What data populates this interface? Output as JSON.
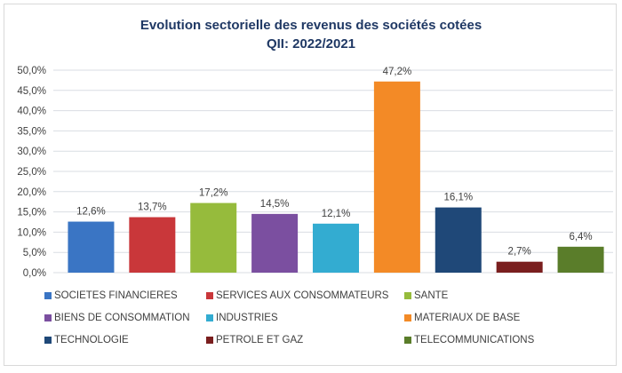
{
  "chart_data": {
    "type": "bar",
    "title": "Evolution sectorielle des revenus des sociétés cotées",
    "subtitle": "QII: 2022/2021",
    "categories": [
      "SOCIETES FINANCIERES",
      "SERVICES AUX CONSOMMATEURS",
      "SANTE",
      "BIENS DE CONSOMMATION",
      "INDUSTRIES",
      "MATERIAUX DE BASE",
      "TECHNOLOGIE",
      "PETROLE ET GAZ",
      "TELECOMMUNICATIONS"
    ],
    "values": [
      12.6,
      13.7,
      17.2,
      14.5,
      12.1,
      47.2,
      16.1,
      2.7,
      6.4
    ],
    "data_labels": [
      "12,6%",
      "13,7%",
      "17,2%",
      "14,5%",
      "12,1%",
      "47,2%",
      "16,1%",
      "2,7%",
      "6,4%"
    ],
    "colors": [
      "#3a75c4",
      "#c9373a",
      "#96bb3c",
      "#7b4fa0",
      "#33acd1",
      "#f38a26",
      "#1f4878",
      "#7a1e1e",
      "#5a7d2a"
    ],
    "ylim": [
      0,
      50
    ],
    "yticks": [
      "0,0%",
      "5,0%",
      "10,0%",
      "15,0%",
      "20,0%",
      "25,0%",
      "30,0%",
      "35,0%",
      "40,0%",
      "45,0%",
      "50,0%"
    ],
    "grid": true,
    "legend_position": "bottom"
  }
}
